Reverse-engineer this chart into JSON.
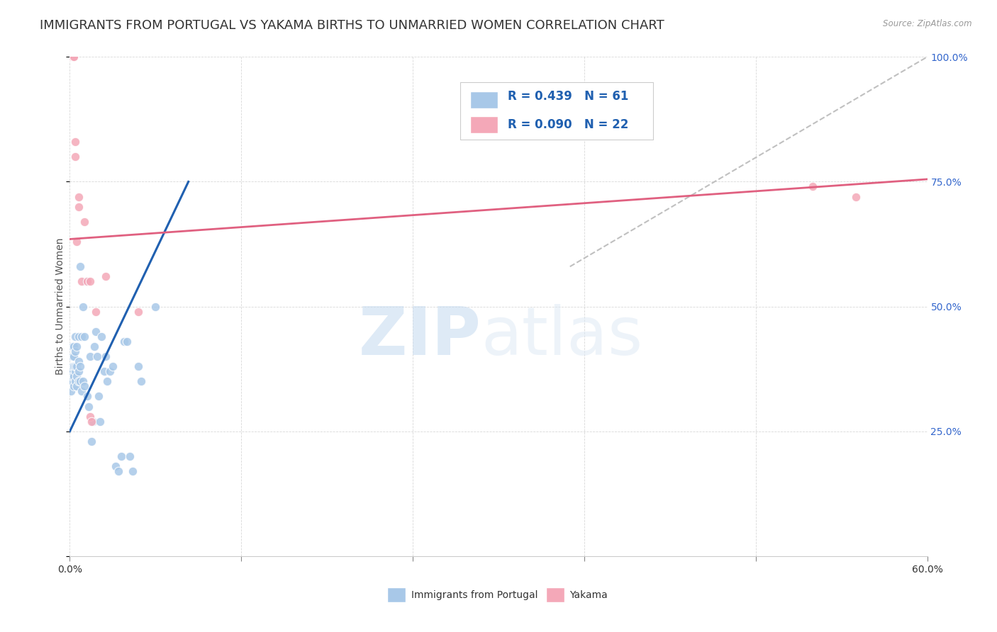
{
  "title": "IMMIGRANTS FROM PORTUGAL VS YAKAMA BIRTHS TO UNMARRIED WOMEN CORRELATION CHART",
  "source": "Source: ZipAtlas.com",
  "ylabel": "Births to Unmarried Women",
  "xmin": 0.0,
  "xmax": 0.6,
  "ymin": 0.0,
  "ymax": 1.0,
  "xticks": [
    0.0,
    0.12,
    0.24,
    0.36,
    0.48,
    0.6
  ],
  "xtick_labels": [
    "0.0%",
    "",
    "",
    "",
    "",
    "60.0%"
  ],
  "yticks": [
    0.0,
    0.25,
    0.5,
    0.75,
    1.0
  ],
  "ytick_labels": [
    "",
    "25.0%",
    "50.0%",
    "75.0%",
    "100.0%"
  ],
  "legend_r1": "R = 0.439",
  "legend_n1": "N = 61",
  "legend_r2": "R = 0.090",
  "legend_n2": "N = 22",
  "color_blue": "#a8c8e8",
  "color_pink": "#f4a8b8",
  "line_blue": "#2060b0",
  "line_pink": "#e06080",
  "line_gray": "#c0c0c0",
  "watermark_zip": "ZIP",
  "watermark_atlas": "atlas",
  "blue_scatter_x": [
    0.001,
    0.001,
    0.001,
    0.002,
    0.002,
    0.002,
    0.002,
    0.003,
    0.003,
    0.003,
    0.003,
    0.003,
    0.004,
    0.004,
    0.004,
    0.004,
    0.004,
    0.005,
    0.005,
    0.005,
    0.005,
    0.006,
    0.006,
    0.006,
    0.006,
    0.007,
    0.007,
    0.007,
    0.008,
    0.008,
    0.009,
    0.009,
    0.01,
    0.01,
    0.011,
    0.012,
    0.013,
    0.014,
    0.015,
    0.016,
    0.017,
    0.018,
    0.019,
    0.02,
    0.021,
    0.022,
    0.024,
    0.025,
    0.026,
    0.028,
    0.03,
    0.032,
    0.034,
    0.036,
    0.038,
    0.04,
    0.042,
    0.044,
    0.048,
    0.05,
    0.06
  ],
  "blue_scatter_y": [
    0.33,
    0.35,
    0.37,
    0.36,
    0.38,
    0.4,
    0.42,
    0.34,
    0.36,
    0.38,
    0.4,
    0.42,
    0.35,
    0.37,
    0.38,
    0.41,
    0.44,
    0.34,
    0.36,
    0.38,
    0.42,
    0.35,
    0.37,
    0.39,
    0.44,
    0.35,
    0.38,
    0.58,
    0.33,
    0.44,
    0.35,
    0.5,
    0.34,
    0.44,
    0.55,
    0.32,
    0.3,
    0.4,
    0.23,
    0.27,
    0.42,
    0.45,
    0.4,
    0.32,
    0.27,
    0.44,
    0.37,
    0.4,
    0.35,
    0.37,
    0.38,
    0.18,
    0.17,
    0.2,
    0.43,
    0.43,
    0.2,
    0.17,
    0.38,
    0.35,
    0.5
  ],
  "pink_scatter_x": [
    0.001,
    0.001,
    0.002,
    0.002,
    0.003,
    0.003,
    0.004,
    0.004,
    0.005,
    0.006,
    0.006,
    0.008,
    0.01,
    0.012,
    0.014,
    0.014,
    0.015,
    0.018,
    0.025,
    0.048,
    0.52,
    0.55
  ],
  "pink_scatter_y": [
    1.0,
    1.0,
    1.0,
    1.0,
    1.0,
    1.0,
    0.8,
    0.83,
    0.63,
    0.7,
    0.72,
    0.55,
    0.67,
    0.55,
    0.55,
    0.28,
    0.27,
    0.49,
    0.56,
    0.49,
    0.74,
    0.72
  ],
  "blue_line_x": [
    0.0,
    0.083
  ],
  "blue_line_y": [
    0.25,
    0.75
  ],
  "pink_line_x": [
    0.0,
    0.6
  ],
  "pink_line_y": [
    0.635,
    0.755
  ],
  "gray_line_x": [
    0.35,
    0.6
  ],
  "gray_line_y": [
    0.58,
    1.0
  ],
  "title_fontsize": 13,
  "label_fontsize": 10,
  "tick_fontsize": 10
}
